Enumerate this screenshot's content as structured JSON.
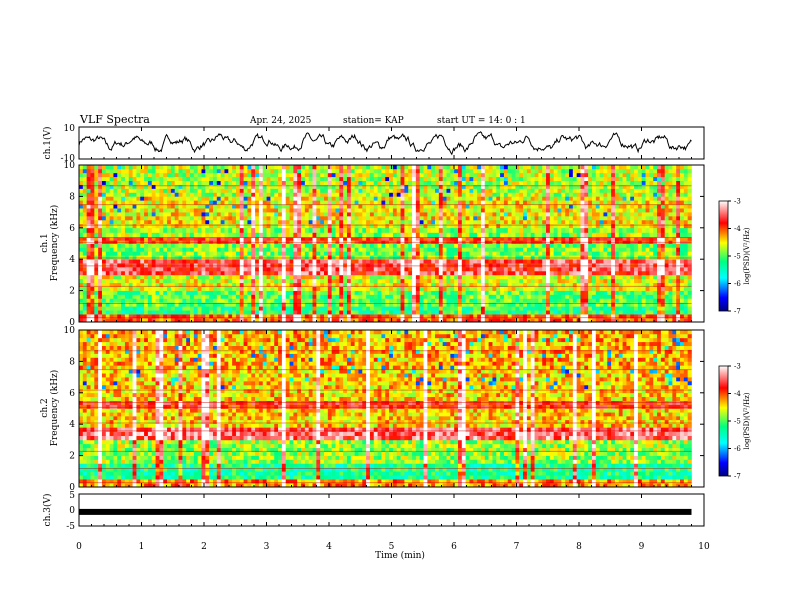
{
  "header": {
    "title": "VLF Spectra",
    "date": "Apr. 24, 2025",
    "station": "station= KAP",
    "start_ut": "start  UT =   14: 0  : 1"
  },
  "chart_data": [
    {
      "type": "line",
      "panel": "ch1-waveform",
      "ylabel": "ch.1(V)",
      "xlim": [
        0,
        10
      ],
      "ylim": [
        -10,
        10
      ],
      "yticks": [
        "10",
        "-10"
      ],
      "note": "noisy waveform oscillating roughly between -6 and 6 V over 0 to 9.8 min"
    },
    {
      "type": "heatmap",
      "panel": "ch1-spectrogram",
      "ylabel": "ch.1\nFrequency (kHz)",
      "ylabel_line1": "ch.1",
      "ylabel_line2": "Frequency  (kHz)",
      "xlim": [
        0,
        10
      ],
      "ylim": [
        0,
        10
      ],
      "yticks": [
        "0",
        "2",
        "4",
        "6",
        "8",
        "10"
      ],
      "colorbar": {
        "label": "log(PSD)(V²/Hz)",
        "range": [
          -7,
          -3
        ],
        "ticks": [
          "-3",
          "-4",
          "-5",
          "-6",
          "-7"
        ],
        "colormap": [
          "#000080",
          "#0000ff",
          "#00ffff",
          "#00ff80",
          "#ffff00",
          "#ff0000",
          "#ffffff"
        ]
      },
      "bands_khz": [
        {
          "from": 0.0,
          "to": 0.5,
          "level": -4.0
        },
        {
          "from": 0.5,
          "to": 1.0,
          "level": -5.2
        },
        {
          "from": 1.0,
          "to": 2.0,
          "level": -5.0
        },
        {
          "from": 2.0,
          "to": 3.0,
          "level": -4.6
        },
        {
          "from": 3.0,
          "to": 4.0,
          "level": -3.6
        },
        {
          "from": 4.0,
          "to": 5.0,
          "level": -4.9
        },
        {
          "from": 5.0,
          "to": 5.4,
          "level": -3.9
        },
        {
          "from": 5.4,
          "to": 6.0,
          "level": -4.8
        },
        {
          "from": 6.0,
          "to": 8.0,
          "level": -4.5
        },
        {
          "from": 8.0,
          "to": 10.0,
          "level": -4.7
        }
      ]
    },
    {
      "type": "heatmap",
      "panel": "ch2-spectrogram",
      "ylabel_line1": "ch.2",
      "ylabel_line2": "Frequency  (kHz)",
      "xlim": [
        0,
        10
      ],
      "ylim": [
        0,
        10
      ],
      "yticks": [
        "0",
        "2",
        "4",
        "6",
        "8",
        "10"
      ],
      "colorbar": {
        "label": "log(PSD)(V²/Hz)",
        "range": [
          -7,
          -3
        ],
        "ticks": [
          "-3",
          "-4",
          "-5",
          "-6",
          "-7"
        ]
      },
      "bands_khz": [
        {
          "from": 0.0,
          "to": 0.5,
          "level": -4.2
        },
        {
          "from": 0.5,
          "to": 1.5,
          "level": -5.3
        },
        {
          "from": 1.5,
          "to": 3.0,
          "level": -4.8
        },
        {
          "from": 3.0,
          "to": 3.8,
          "level": -3.5
        },
        {
          "from": 3.8,
          "to": 5.0,
          "level": -4.4
        },
        {
          "from": 5.0,
          "to": 5.5,
          "level": -3.8
        },
        {
          "from": 5.5,
          "to": 7.5,
          "level": -4.4
        },
        {
          "from": 7.5,
          "to": 10.0,
          "level": -4.3
        }
      ]
    },
    {
      "type": "line",
      "panel": "ch3-signal",
      "ylabel": "ch.3(V)",
      "xlim": [
        0,
        10
      ],
      "ylim": [
        -5,
        5
      ],
      "yticks": [
        "5",
        "0",
        "-5"
      ],
      "constant_value": -0.6,
      "xlabel": "Time  (min)",
      "xticks": [
        "0",
        "1",
        "2",
        "3",
        "4",
        "5",
        "6",
        "7",
        "8",
        "9",
        "10"
      ]
    }
  ]
}
